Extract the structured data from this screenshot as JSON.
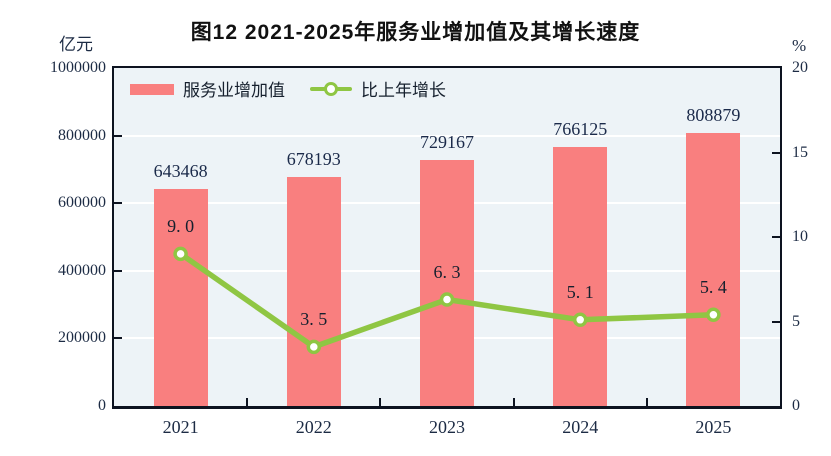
{
  "chart_data": {
    "type": "bar",
    "title": "图12  2021-2025年服务业增加值及其增长速度",
    "categories": [
      "2021",
      "2022",
      "2023",
      "2024",
      "2025"
    ],
    "series": [
      {
        "name": "服务业增加值",
        "type": "bar",
        "axis": "left",
        "values": [
          643468,
          678193,
          729167,
          766125,
          808879
        ],
        "value_labels": [
          "643468",
          "678193",
          "729167",
          "766125",
          "808879"
        ],
        "color": "#f97f7f"
      },
      {
        "name": "比上年增长",
        "type": "line",
        "axis": "right",
        "values": [
          9.0,
          3.5,
          6.3,
          5.1,
          5.4
        ],
        "value_labels": [
          "9. 0",
          "3. 5",
          "6. 3",
          "5. 1",
          "5. 4"
        ],
        "color": "#8fc643",
        "marker_fill": "#ffffff"
      }
    ],
    "left_axis": {
      "unit": "亿元",
      "min": 0,
      "max": 1000000,
      "ticks": [
        0,
        200000,
        400000,
        600000,
        800000,
        1000000
      ],
      "tick_labels": [
        "0",
        "200000",
        "400000",
        "600000",
        "800000",
        "1000000"
      ]
    },
    "right_axis": {
      "unit": "%",
      "min": 0,
      "max": 20,
      "ticks": [
        0,
        5,
        10,
        15,
        20
      ],
      "tick_labels": [
        "0",
        "5",
        "10",
        "15",
        "20"
      ]
    },
    "legend_position": "top-left-inside",
    "grid": "horizontal",
    "colors": {
      "plot_background": "#edf3f7",
      "gridline": "#ffffff",
      "axis_border": "#0d1320",
      "axis_text": "#1c2b44",
      "title_text": "#111111"
    }
  }
}
